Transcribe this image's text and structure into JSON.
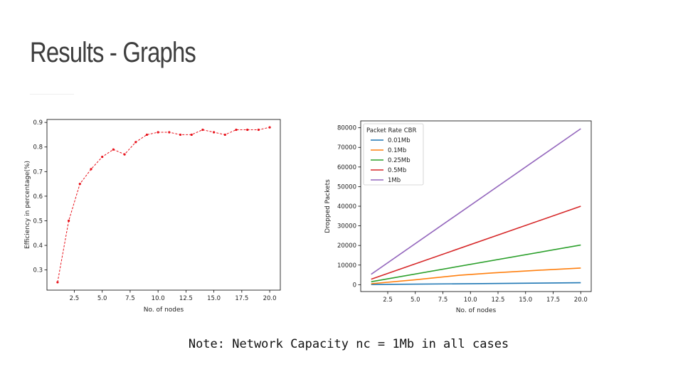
{
  "slide": {
    "title": "Results - Graphs",
    "note": "Note: Network Capacity nc = 1Mb in all cases"
  },
  "chart_data": [
    {
      "type": "line",
      "title": "",
      "xlabel": "No. of nodes",
      "ylabel": "Efficiency in percentage(%)",
      "xlim": [
        0.05,
        20.95
      ],
      "ylim": [
        0.218,
        0.912
      ],
      "xticks": [
        2.5,
        5.0,
        7.5,
        10.0,
        12.5,
        15.0,
        17.5,
        20.0
      ],
      "yticks": [
        0.3,
        0.4,
        0.5,
        0.6,
        0.7,
        0.8,
        0.9
      ],
      "grid": false,
      "legend": null,
      "series": [
        {
          "color": "#e8111a",
          "line_style": "dashed",
          "marker": "dot",
          "x": [
            1,
            2,
            3,
            4,
            5,
            6,
            7,
            8,
            9,
            10,
            11,
            12,
            13,
            14,
            15,
            16,
            17,
            18,
            19,
            20
          ],
          "y": [
            0.25,
            0.5,
            0.65,
            0.71,
            0.76,
            0.79,
            0.77,
            0.82,
            0.85,
            0.86,
            0.86,
            0.85,
            0.85,
            0.87,
            0.86,
            0.85,
            0.87,
            0.87,
            0.87,
            0.88
          ]
        }
      ]
    },
    {
      "type": "line",
      "title": "",
      "xlabel": "No. of nodes",
      "ylabel": "Dropped Packets",
      "xlim": [
        0.05,
        20.95
      ],
      "ylim": [
        -3500,
        83500
      ],
      "xticks": [
        2.5,
        5.0,
        7.5,
        10.0,
        12.5,
        15.0,
        17.5,
        20.0
      ],
      "yticks": [
        0,
        10000,
        20000,
        30000,
        40000,
        50000,
        60000,
        70000,
        80000
      ],
      "grid": false,
      "legend": {
        "title": "Packet Rate CBR",
        "position": "top-left"
      },
      "series": [
        {
          "name": "0.01Mb",
          "color": "#1f77b4",
          "x": [
            1,
            20
          ],
          "y": [
            100,
            1000
          ]
        },
        {
          "name": "0.1Mb",
          "color": "#ff7f0e",
          "x": [
            1,
            5,
            9,
            12,
            16,
            20
          ],
          "y": [
            500,
            2500,
            4800,
            6000,
            7300,
            8500
          ]
        },
        {
          "name": "0.25Mb",
          "color": "#2ca02c",
          "x": [
            1,
            20
          ],
          "y": [
            1500,
            20200
          ]
        },
        {
          "name": "0.5Mb",
          "color": "#d62728",
          "x": [
            1,
            20
          ],
          "y": [
            2800,
            40000
          ]
        },
        {
          "name": "1Mb",
          "color": "#9467bd",
          "x": [
            1,
            20
          ],
          "y": [
            5300,
            79500
          ]
        }
      ]
    }
  ]
}
